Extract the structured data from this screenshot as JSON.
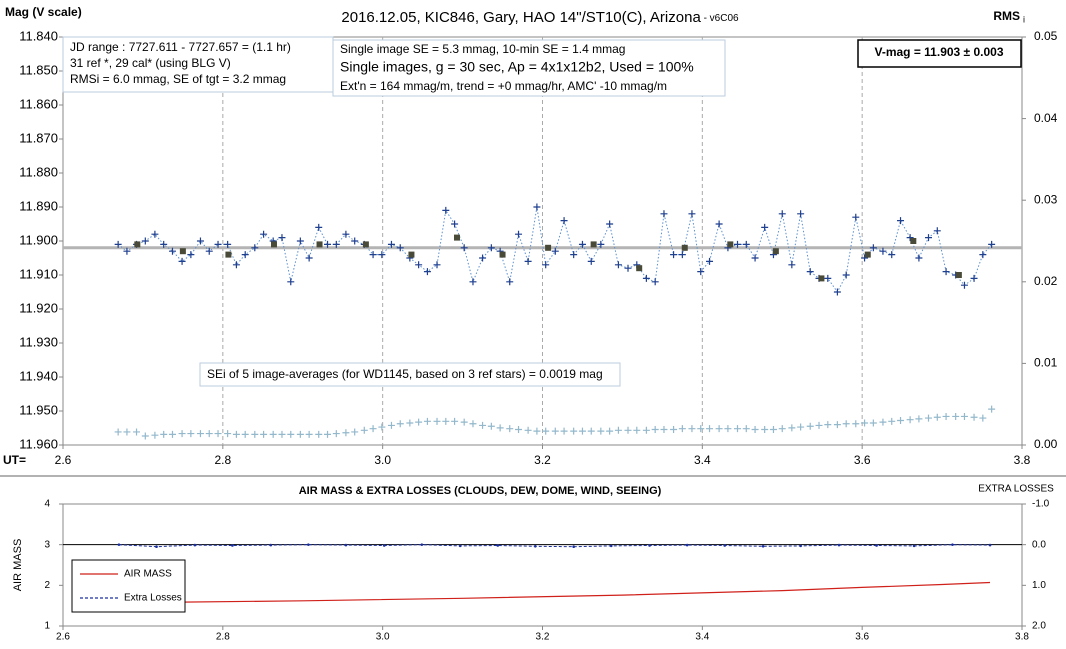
{
  "chart_data": [
    {
      "type": "line",
      "title": "2016.12.05, KIC846, Gary, HAO 14\"/ST10(C), Arizona",
      "title_suffix": " - v6C06",
      "ylabel": "Mag (V scale)",
      "y2label": "RMS",
      "y2label_sub": "i",
      "xlabel": "UT=",
      "info_box": [
        "JD range : 7727.611 - 7727.657  = (1.1 hr)",
        "31 ref *, 29 cal* (using BLG V)",
        "RMSi = 6.0 mmag, SE of tgt = 3.2 mmag"
      ],
      "stats_box": [
        "Single image SE = 5.3 mmag, 10-min SE = 1.4 mmag",
        "Single images, g = 30 sec, Ap = 4x1x12b2, Used = 100%",
        "Ext'n = 164 mmag/m, trend = +0 mmag/hr, AMC' -10 mmag/m"
      ],
      "result": "V-mag  = 11.903 ± 0.003",
      "note": "SEi of 5 image-averages (for WD1145, based on 3 ref stars) = 0.0019 mag",
      "xlim": [
        2.6,
        3.8
      ],
      "xticks": [
        2.6,
        2.8,
        {
          "value": 3,
          "label": "3.0"
        },
        3.2,
        3.4,
        3.6,
        3.8
      ],
      "ylim": [
        11.96,
        11.84
      ],
      "yticks": [
        {
          "value": 11.84,
          "label": "11.840"
        },
        {
          "value": 11.85,
          "label": "11.850"
        },
        {
          "value": 11.86,
          "label": "11.860"
        },
        {
          "value": 11.87,
          "label": "11.870"
        },
        {
          "value": 11.88,
          "label": "11.880"
        },
        {
          "value": 11.89,
          "label": "11.890"
        },
        {
          "value": 11.9,
          "label": "11.900"
        },
        {
          "value": 11.91,
          "label": "11.910"
        },
        {
          "value": 11.92,
          "label": "11.920"
        },
        {
          "value": 11.93,
          "label": "11.930"
        },
        {
          "value": 11.94,
          "label": "11.940"
        },
        {
          "value": 11.95,
          "label": "11.950"
        },
        {
          "value": 11.96,
          "label": "11.960"
        }
      ],
      "y2lim": [
        0,
        0.05
      ],
      "y2ticks": [
        0.05,
        0.04,
        0.03,
        0.02,
        0.01,
        {
          "value": 0,
          "label": "0.00"
        }
      ],
      "xgrid": true,
      "mean_line": 11.902,
      "mean_line_color": "#b4b4b4",
      "x": [
        2.669,
        2.68,
        2.692,
        2.703,
        2.715,
        2.726,
        2.737,
        2.749,
        2.76,
        2.772,
        2.783,
        2.794,
        2.806,
        2.817,
        2.828,
        2.84,
        2.851,
        2.863,
        2.874,
        2.885,
        2.897,
        2.908,
        2.92,
        2.931,
        2.942,
        2.954,
        2.965,
        2.977,
        2.988,
        2.999,
        3.011,
        3.022,
        3.034,
        3.045,
        3.056,
        3.068,
        3.079,
        3.09,
        3.102,
        3.113,
        3.125,
        3.136,
        3.147,
        3.159,
        3.17,
        3.182,
        3.193,
        3.204,
        3.216,
        3.227,
        3.239,
        3.25,
        3.261,
        3.273,
        3.284,
        3.295,
        3.307,
        3.318,
        3.33,
        3.341,
        3.352,
        3.364,
        3.375,
        3.387,
        3.398,
        3.409,
        3.421,
        3.432,
        3.444,
        3.455,
        3.466,
        3.478,
        3.489,
        3.5,
        3.512,
        3.523,
        3.535,
        3.546,
        3.557,
        3.569,
        3.58,
        3.592,
        3.603,
        3.614,
        3.626,
        3.637,
        3.648,
        3.66,
        3.671,
        3.683,
        3.694,
        3.705,
        3.717,
        3.728,
        3.74,
        3.751,
        3.762
      ],
      "series": [
        {
          "color": "#1f3f8f",
          "marker": "plus",
          "line": "dotted",
          "line_color": "#5b8fd0",
          "values": [
            11.901,
            11.903,
            11.901,
            11.9,
            11.898,
            11.901,
            11.903,
            11.906,
            11.904,
            11.9,
            11.903,
            11.901,
            11.901,
            11.907,
            11.904,
            11.902,
            11.898,
            11.9,
            11.899,
            11.912,
            11.9,
            11.905,
            11.896,
            11.901,
            11.901,
            11.898,
            11.9,
            11.901,
            11.904,
            11.904,
            11.901,
            11.902,
            11.905,
            11.907,
            11.909,
            11.907,
            11.891,
            11.895,
            11.902,
            11.912,
            11.905,
            11.902,
            11.903,
            11.912,
            11.898,
            11.906,
            11.89,
            11.907,
            11.903,
            11.894,
            11.904,
            11.901,
            11.906,
            11.901,
            11.895,
            11.907,
            11.908,
            11.907,
            11.911,
            11.912,
            11.892,
            11.904,
            11.904,
            11.892,
            11.909,
            11.906,
            11.895,
            11.902,
            11.901,
            11.901,
            11.905,
            11.896,
            11.904,
            11.892,
            11.907,
            11.892,
            11.909,
            11.911,
            11.911,
            11.915,
            11.91,
            11.893,
            11.905,
            11.902,
            11.903,
            11.904,
            11.894,
            11.899,
            11.905,
            11.899,
            11.897,
            11.909,
            11.91,
            11.913,
            11.911,
            11.904,
            11.901
          ]
        },
        {
          "color": "#4a4a38",
          "marker": "square",
          "line": "none",
          "x": [
            2.693,
            2.75,
            2.807,
            2.864,
            2.921,
            2.979,
            3.036,
            3.093,
            3.15,
            3.207,
            3.264,
            3.321,
            3.378,
            3.435,
            3.492,
            3.549,
            3.607,
            3.664,
            3.721
          ],
          "values": [
            11.901,
            11.903,
            11.904,
            11.901,
            11.901,
            11.901,
            11.904,
            11.899,
            11.904,
            11.902,
            11.901,
            11.908,
            11.902,
            11.901,
            11.903,
            11.911,
            11.904,
            11.9,
            11.91
          ]
        },
        {
          "color": "#93b8cc",
          "marker": "plus",
          "line": "none",
          "axis": "y2",
          "values": [
            0.0016,
            0.0016,
            0.0016,
            0.0011,
            0.0012,
            0.0013,
            0.0013,
            0.0014,
            0.0014,
            0.0014,
            0.0014,
            0.0014,
            0.0014,
            0.0013,
            0.0013,
            0.0013,
            0.0013,
            0.0013,
            0.0013,
            0.0013,
            0.0013,
            0.0013,
            0.0013,
            0.0013,
            0.0014,
            0.0015,
            0.0016,
            0.0018,
            0.002,
            0.0022,
            0.0024,
            0.0026,
            0.0027,
            0.0028,
            0.0029,
            0.0029,
            0.0029,
            0.0029,
            0.0028,
            0.0026,
            0.0024,
            0.0023,
            0.0021,
            0.002,
            0.0019,
            0.0018,
            0.0017,
            0.0017,
            0.0017,
            0.0017,
            0.0017,
            0.0017,
            0.0017,
            0.0017,
            0.0017,
            0.0018,
            0.0018,
            0.0018,
            0.0018,
            0.0019,
            0.0019,
            0.0019,
            0.002,
            0.002,
            0.002,
            0.002,
            0.002,
            0.002,
            0.002,
            0.002,
            0.0019,
            0.0019,
            0.0019,
            0.002,
            0.0021,
            0.0022,
            0.0023,
            0.0024,
            0.0025,
            0.0025,
            0.0026,
            0.0026,
            0.0027,
            0.0027,
            0.0028,
            0.0029,
            0.003,
            0.0031,
            0.0032,
            0.0033,
            0.0034,
            0.0035,
            0.0035,
            0.0035,
            0.0034,
            0.0033,
            0.0044
          ]
        }
      ]
    },
    {
      "type": "line",
      "title": "AIR MASS & EXTRA LOSSES (CLOUDS, DEW, DOME, WIND, SEEING)",
      "ylabel": "AIR MASS",
      "y2label": "EXTRA LOSSES",
      "xlim": [
        2.6,
        3.8
      ],
      "xticks": [
        2.6,
        2.8,
        {
          "value": 3,
          "label": "3.0"
        },
        3.2,
        3.4,
        3.6,
        3.8
      ],
      "ylim": [
        1,
        4
      ],
      "yticks": [
        1,
        2,
        3,
        4
      ],
      "y2lim": [
        2,
        -1
      ],
      "y2ticks": [
        {
          "value": -1,
          "label": "-1.0"
        },
        {
          "value": 0,
          "label": "0.0"
        },
        {
          "value": 1,
          "label": "1.0"
        },
        {
          "value": 2,
          "label": "2.0"
        }
      ],
      "legend": "lower left",
      "series": [
        {
          "name": "AIR MASS",
          "color": "#d0201a",
          "marker": "none",
          "line": "solid",
          "x": [
            2.72,
            2.9,
            3.1,
            3.3,
            3.5,
            3.6,
            3.7,
            3.76
          ],
          "values": [
            1.58,
            1.62,
            1.68,
            1.76,
            1.87,
            1.95,
            2.02,
            2.07
          ]
        },
        {
          "name": "Extra Losses",
          "color": "#1a2fa0",
          "marker": "dot",
          "line": "dashed",
          "axis": "y2",
          "x": [
            2.67,
            2.717,
            2.765,
            2.812,
            2.86,
            2.907,
            2.954,
            3.002,
            3.049,
            3.097,
            3.144,
            3.191,
            3.239,
            3.286,
            3.334,
            3.381,
            3.428,
            3.476,
            3.523,
            3.571,
            3.618,
            3.665,
            3.713,
            3.76
          ],
          "values": [
            0.0,
            0.05,
            0.01,
            0.02,
            0.01,
            0.0,
            0.01,
            0.02,
            0.0,
            0.03,
            0.02,
            0.04,
            0.05,
            0.03,
            0.02,
            0.01,
            0.02,
            0.04,
            0.03,
            0.01,
            0.02,
            0.03,
            0.0,
            0.01
          ]
        }
      ]
    }
  ]
}
